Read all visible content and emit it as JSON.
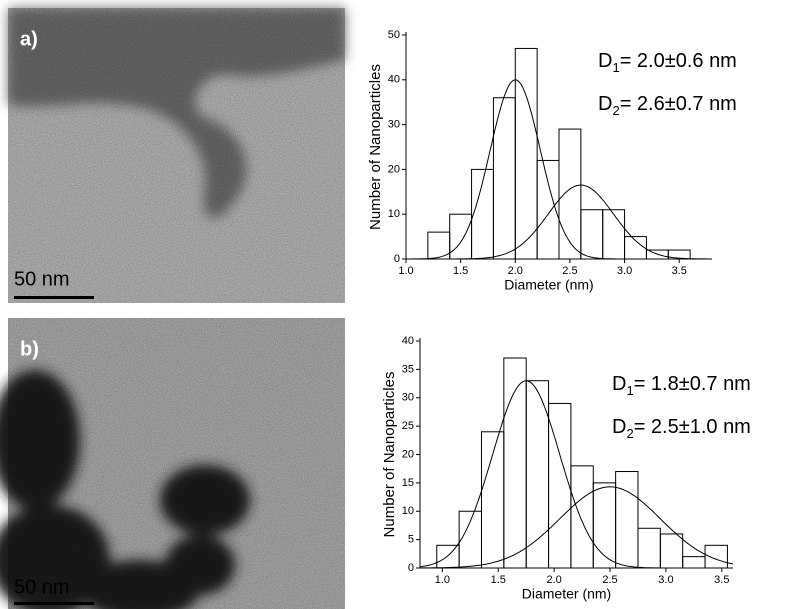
{
  "images": [
    {
      "label": "a)",
      "scale_bar": "50 nm"
    },
    {
      "label": "b)",
      "scale_bar": "50 nm"
    }
  ],
  "chart_data": [
    {
      "type": "histogram",
      "xlabel": "Diameter (nm)",
      "ylabel": "Number of Nanoparticles",
      "bins": [
        1.2,
        1.4,
        1.6,
        1.8,
        2.0,
        2.2,
        2.4,
        2.6,
        2.8,
        3.0,
        3.2,
        3.4,
        3.6
      ],
      "values": [
        6,
        10,
        20,
        36,
        47,
        22,
        29,
        11,
        11,
        5,
        2,
        2
      ],
      "fits": [
        {
          "center": 2.0,
          "amplitude": 40,
          "sigma": 0.23
        },
        {
          "center": 2.6,
          "amplitude": 16.5,
          "sigma": 0.3
        }
      ],
      "annotations": [
        {
          "text": "D",
          "sub": "1",
          "rest": "= 2.0±0.6 nm"
        },
        {
          "text": "D",
          "sub": "2",
          "rest": "= 2.6±0.7 nm"
        }
      ],
      "xlim": [
        1.0,
        3.8
      ],
      "ylim": [
        0,
        50
      ],
      "xticks": [
        {
          "value": 1,
          "label": "1.0"
        },
        1.5,
        {
          "value": 2,
          "label": "2.0"
        },
        2.5,
        {
          "value": 3,
          "label": "3.0"
        },
        3.5
      ],
      "yticks": [
        0,
        10,
        20,
        30,
        40,
        50
      ]
    },
    {
      "type": "histogram",
      "xlabel": "Diameter (nm)",
      "ylabel": "Number of Nanoparticles",
      "bins": [
        0.95,
        1.15,
        1.35,
        1.55,
        1.75,
        1.95,
        2.15,
        2.35,
        2.55,
        2.75,
        2.95,
        3.15,
        3.35,
        3.55
      ],
      "values": [
        4,
        10,
        24,
        37,
        33,
        29,
        18,
        15,
        17,
        7,
        6,
        2,
        4
      ],
      "fits": [
        {
          "center": 1.75,
          "amplitude": 33,
          "sigma": 0.3
        },
        {
          "center": 2.5,
          "amplitude": 14.3,
          "sigma": 0.45
        }
      ],
      "annotations": [
        {
          "text": "D",
          "sub": "1",
          "rest": "= 1.8±0.7 nm"
        },
        {
          "text": "D",
          "sub": "2",
          "rest": "= 2.5±1.0 nm"
        }
      ],
      "xlim": [
        0.8,
        3.6
      ],
      "ylim": [
        0,
        40
      ],
      "xticks": [
        {
          "value": 1,
          "label": "1.0"
        },
        1.5,
        {
          "value": 2,
          "label": "2.0"
        },
        2.5,
        {
          "value": 3,
          "label": "3.0"
        },
        3.5
      ],
      "yticks": [
        0,
        5,
        10,
        15,
        20,
        25,
        30,
        35,
        40
      ]
    }
  ]
}
